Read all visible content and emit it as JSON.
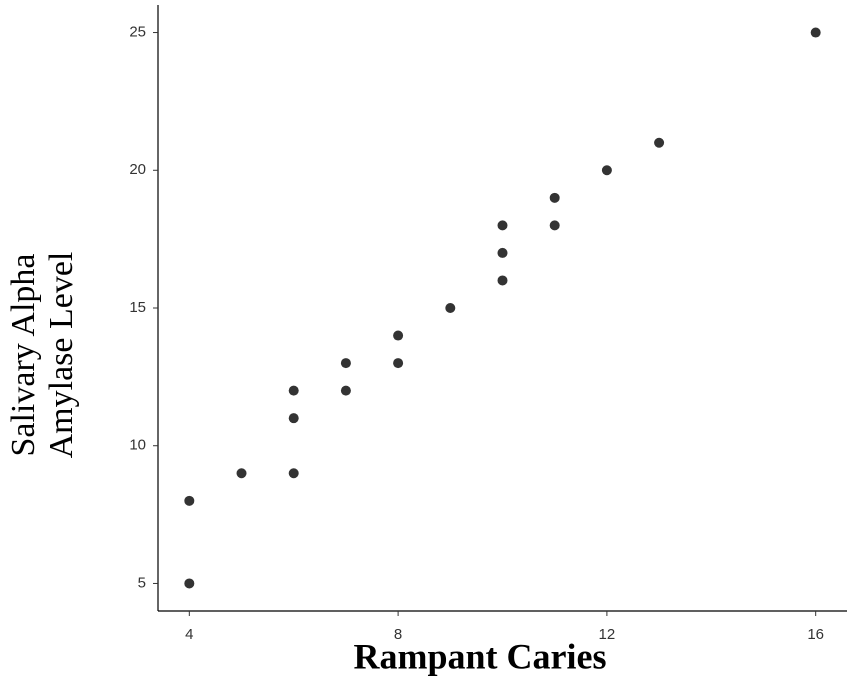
{
  "chart_data": {
    "type": "scatter",
    "xlabel": "Rampant Caries",
    "ylabel": [
      "Salivary Alpha",
      "Amylase Level"
    ],
    "x": [
      4,
      4,
      5,
      6,
      6,
      6,
      7,
      7,
      8,
      8,
      9,
      10,
      10,
      10,
      11,
      11,
      12,
      13,
      16
    ],
    "series": [
      {
        "name": "points",
        "color": "#333333",
        "values": [
          8,
          5,
          9,
          12,
          11,
          9,
          13,
          12,
          14,
          13,
          15,
          18,
          17,
          16,
          19,
          18,
          20,
          21,
          25
        ]
      }
    ],
    "xlim": [
      3.4,
      16.6
    ],
    "xticks": [
      4,
      8,
      12,
      16
    ],
    "ylim": [
      4,
      26
    ],
    "yticks": [
      5,
      10,
      15,
      20,
      25
    ],
    "grid": false
  }
}
